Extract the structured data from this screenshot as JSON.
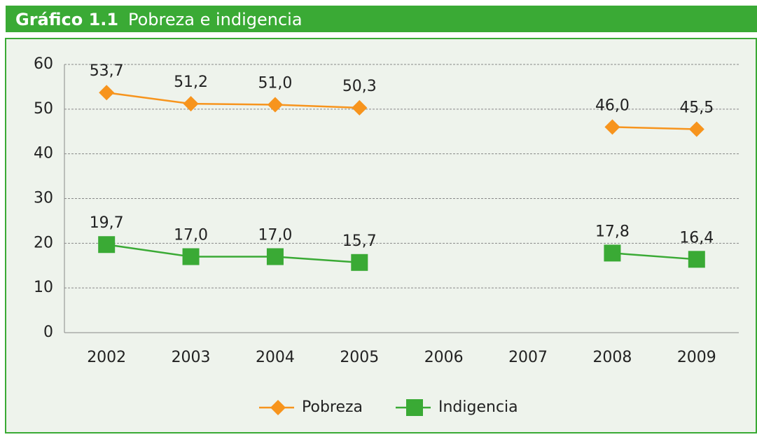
{
  "chart_data": {
    "type": "line",
    "title_label": "Gráfico 1.1",
    "title": "Pobreza e indigencia",
    "categories": [
      "2002",
      "2003",
      "2004",
      "2005",
      "2006",
      "2007",
      "2008",
      "2009"
    ],
    "series": [
      {
        "name": "Pobreza",
        "color": "#f7941d",
        "marker": "diamond",
        "values": [
          53.7,
          51.2,
          51.0,
          50.3,
          null,
          null,
          46.0,
          45.5
        ],
        "value_labels": [
          "53,7",
          "51,2",
          "51,0",
          "50,3",
          null,
          null,
          "46,0",
          "45,5"
        ]
      },
      {
        "name": "Indigencia",
        "color": "#3aaa35",
        "marker": "square",
        "values": [
          19.7,
          17.0,
          17.0,
          15.7,
          null,
          null,
          17.8,
          16.4
        ],
        "value_labels": [
          "19,7",
          "17,0",
          "17,0",
          "15,7",
          null,
          null,
          "17,8",
          "16,4"
        ]
      }
    ],
    "ylim": [
      0,
      60
    ],
    "yticks": [
      0,
      10,
      20,
      30,
      40,
      50,
      60
    ],
    "grid": true,
    "legend": "bottom"
  }
}
